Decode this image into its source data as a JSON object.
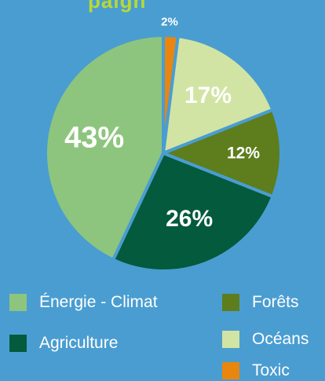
{
  "header": {
    "partial_title": "paign"
  },
  "chart_data": {
    "type": "pie",
    "slices": [
      {
        "label": "Toxic",
        "value": 2,
        "display": "2%",
        "color": "#e8860f"
      },
      {
        "label": "Océans",
        "value": 17,
        "display": "17%",
        "color": "#d2e4a3"
      },
      {
        "label": "Forêts",
        "value": 12,
        "display": "12%",
        "color": "#5e7d1c"
      },
      {
        "label": "Agriculture",
        "value": 26,
        "display": "26%",
        "color": "#035a3c"
      },
      {
        "label": "Énergie - Climat",
        "value": 43,
        "display": "43%",
        "color": "#8dc57e"
      }
    ],
    "legend_position": "bottom"
  }
}
